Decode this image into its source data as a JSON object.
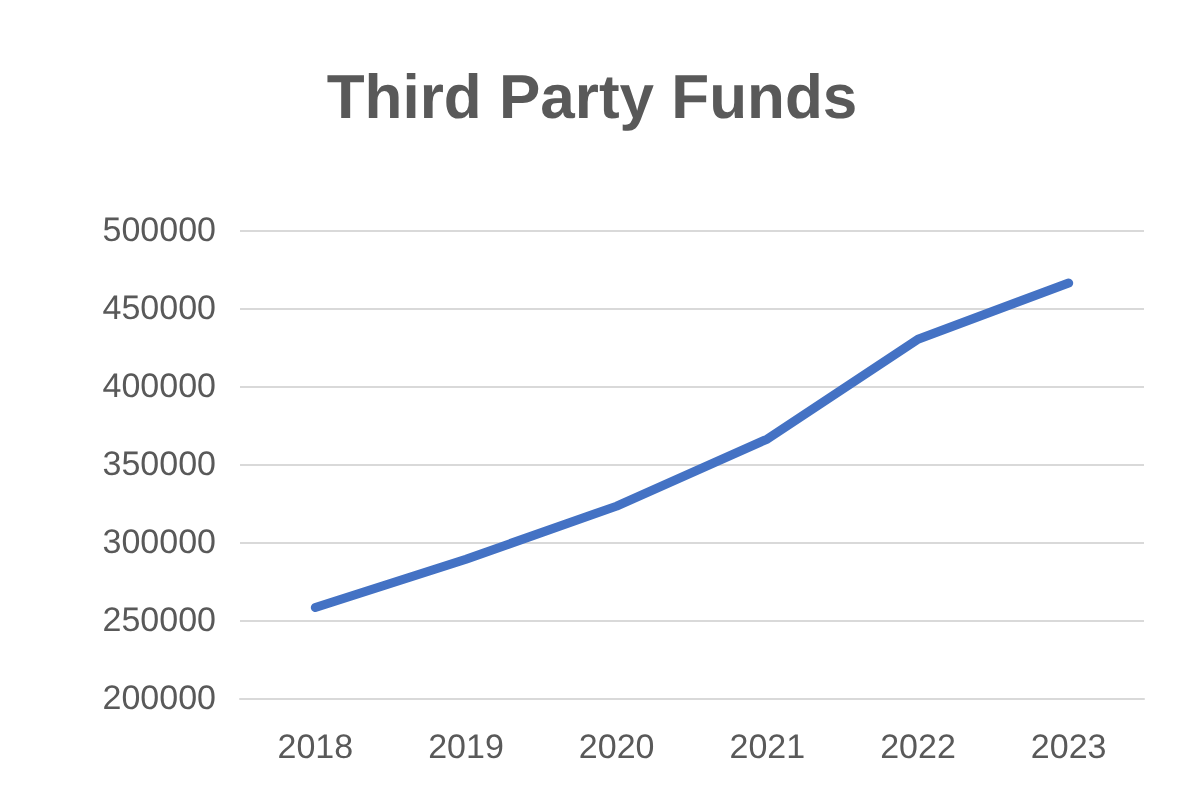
{
  "chart_data": {
    "type": "line",
    "title": "Third Party Funds",
    "categories": [
      "2018",
      "2019",
      "2020",
      "2021",
      "2022",
      "2023"
    ],
    "series": [
      {
        "color": "#4472c4",
        "values": [
          258000,
          289000,
          323000,
          366000,
          430000,
          466000
        ]
      }
    ],
    "ylim": [
      200000,
      500000
    ],
    "yticks": [
      200000,
      250000,
      300000,
      350000,
      400000,
      450000,
      500000
    ],
    "grid": "y",
    "marker": "none",
    "line_style": "solid"
  }
}
